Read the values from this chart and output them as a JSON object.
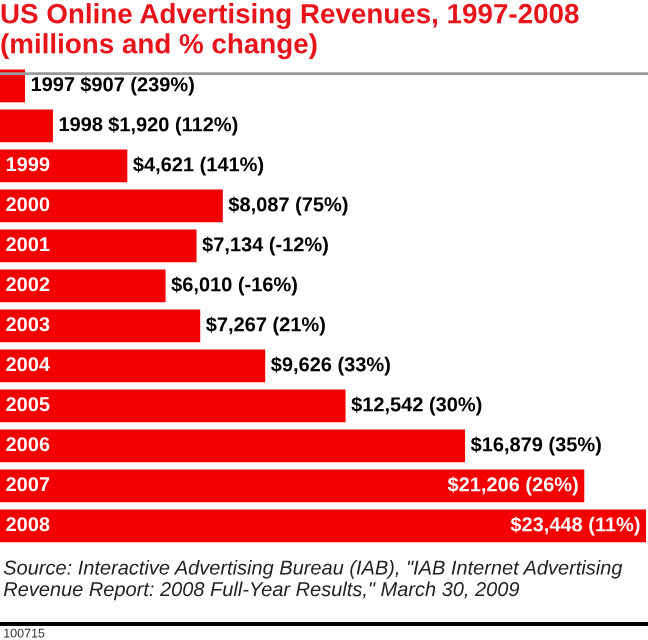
{
  "chart_data": {
    "type": "bar",
    "orientation": "horizontal",
    "title": "US Online Advertising Revenues, 1997-2008 (millions and % change)",
    "categories": [
      "1997",
      "1998",
      "1999",
      "2000",
      "2001",
      "2002",
      "2003",
      "2004",
      "2005",
      "2006",
      "2007",
      "2008"
    ],
    "values": [
      907,
      1920,
      4621,
      8087,
      7134,
      6010,
      7267,
      9626,
      12542,
      16879,
      21206,
      23448
    ],
    "value_labels": [
      "$907 (239%)",
      "$1,920 (112%)",
      "$4,621 (141%)",
      "$8,087 (75%)",
      "$7,134 (-12%)",
      "$6,010 (-16%)",
      "$7,267 (21%)",
      "$9,626 (33%)",
      "$12,542 (30%)",
      "$16,879 (35%)",
      "$21,206 (26%)",
      "$23,448 (11%)"
    ],
    "color": "#f40000",
    "annotations": [
      "Source: Interactive Advertising Bureau (IAB), \"IAB Internet Advertising Revenue Report: 2008 Full-Year Results,\" March 30, 2009",
      "100715"
    ]
  }
}
